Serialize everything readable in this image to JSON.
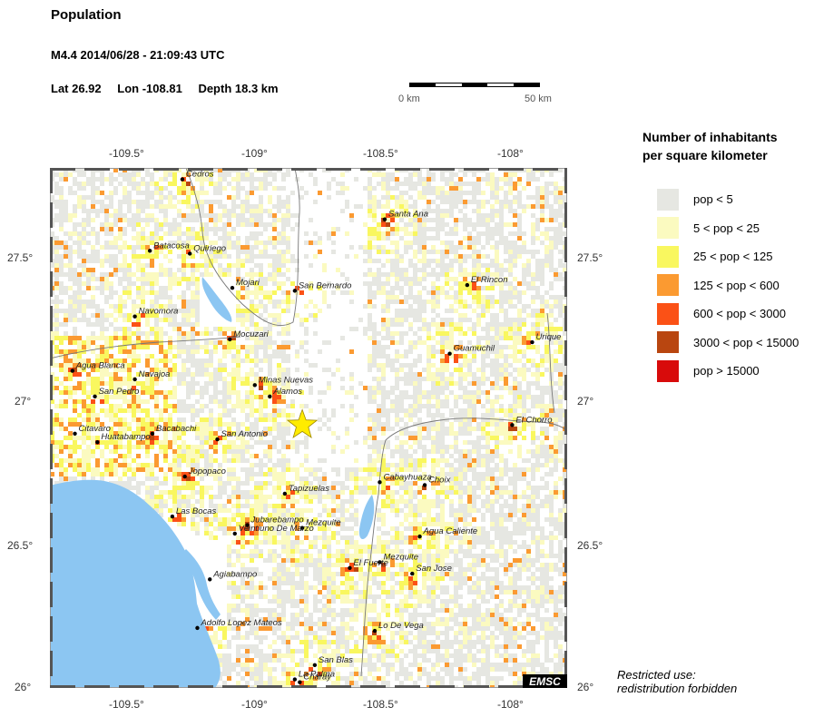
{
  "header": {
    "title": "Population",
    "event": "M4.4  2014/06/28 - 21:09:43 UTC",
    "lat": "Lat 26.92",
    "lon": "Lon -108.81",
    "depth": "Depth  18.3 km"
  },
  "scale": {
    "left_label": "0 km",
    "right_label": "50 km"
  },
  "axes": {
    "lon_ticks": [
      "-109.5°",
      "-109°",
      "-108.5°",
      "-108°"
    ],
    "lat_ticks": [
      "27.5°",
      "27°",
      "26.5°",
      "26°"
    ]
  },
  "legend": {
    "title_line1": "Number of inhabitants",
    "title_line2": "per square kilometer",
    "items": [
      {
        "label": "pop < 5",
        "color": "#e6e7e2"
      },
      {
        "label": "5 < pop < 25",
        "color": "#fbfac0"
      },
      {
        "label": "25 < pop < 125",
        "color": "#f9f75f"
      },
      {
        "label": "125 < pop < 600",
        "color": "#fb9a31"
      },
      {
        "label": "600 < pop < 3000",
        "color": "#fb5116"
      },
      {
        "label": "3000 < pop < 15000",
        "color": "#b94610"
      },
      {
        "label": "pop > 15000",
        "color": "#d80b0b"
      }
    ]
  },
  "map": {
    "epicenter": {
      "lon": -108.81,
      "lat": 26.92
    },
    "colors": {
      "water": "#8cc6f2",
      "star": "#ffec00",
      "border": "#666666"
    },
    "badge": "EMSC",
    "cities": [
      {
        "name": "Cedros",
        "lon": -109.29,
        "lat": 27.78
      },
      {
        "name": "Santa Ana",
        "lon": -108.48,
        "lat": 27.64
      },
      {
        "name": "Batacosa",
        "lon": -109.42,
        "lat": 27.53
      },
      {
        "name": "Quiriego",
        "lon": -109.26,
        "lat": 27.52
      },
      {
        "name": "Mojari",
        "lon": -109.09,
        "lat": 27.4
      },
      {
        "name": "San Bernardo",
        "lon": -108.84,
        "lat": 27.39
      },
      {
        "name": "El Rincon",
        "lon": -108.15,
        "lat": 27.41
      },
      {
        "name": "Navomora",
        "lon": -109.48,
        "lat": 27.3
      },
      {
        "name": "Mocuzari",
        "lon": -109.1,
        "lat": 27.22
      },
      {
        "name": "Guamuchil",
        "lon": -108.22,
        "lat": 27.17
      },
      {
        "name": "Urique",
        "lon": -107.89,
        "lat": 27.21
      },
      {
        "name": "Agua Blanca",
        "lon": -109.73,
        "lat": 27.11
      },
      {
        "name": "Navajoa",
        "lon": -109.48,
        "lat": 27.08
      },
      {
        "name": "Minas Nuevas",
        "lon": -109.0,
        "lat": 27.06
      },
      {
        "name": "Alamos",
        "lon": -108.94,
        "lat": 27.02
      },
      {
        "name": "San Pedro",
        "lon": -109.64,
        "lat": 27.02
      },
      {
        "name": "El Chorro",
        "lon": -107.97,
        "lat": 26.92
      },
      {
        "name": "Citavaro",
        "lon": -109.72,
        "lat": 26.89
      },
      {
        "name": "Bacabachi",
        "lon": -109.41,
        "lat": 26.89
      },
      {
        "name": "Huatabampo",
        "lon": -109.63,
        "lat": 26.86
      },
      {
        "name": "San Antonio",
        "lon": -109.15,
        "lat": 26.87
      },
      {
        "name": "Jopopaco",
        "lon": -109.28,
        "lat": 26.74
      },
      {
        "name": "Cabayhuaza",
        "lon": -108.5,
        "lat": 26.72
      },
      {
        "name": "Choix",
        "lon": -108.32,
        "lat": 26.71
      },
      {
        "name": "Tapizuelas",
        "lon": -108.88,
        "lat": 26.68
      },
      {
        "name": "Las Bocas",
        "lon": -109.33,
        "lat": 26.6
      },
      {
        "name": "Jubarebampo",
        "lon": -109.03,
        "lat": 26.57
      },
      {
        "name": "Mezquite",
        "lon": -108.81,
        "lat": 26.56
      },
      {
        "name": "Veintiuno De Marzo",
        "lon": -109.08,
        "lat": 26.54
      },
      {
        "name": "Agua Caliente",
        "lon": -108.34,
        "lat": 26.53
      },
      {
        "name": "Mezquite",
        "lon": -108.5,
        "lat": 26.44
      },
      {
        "name": "El Fuerte",
        "lon": -108.62,
        "lat": 26.42
      },
      {
        "name": "San Jose",
        "lon": -108.37,
        "lat": 26.4
      },
      {
        "name": "Agiabampo",
        "lon": -109.18,
        "lat": 26.38
      },
      {
        "name": "Adolfo Lopez Mateos",
        "lon": -109.23,
        "lat": 26.21
      },
      {
        "name": "Lo De Vega",
        "lon": -108.52,
        "lat": 26.2
      },
      {
        "name": "San Blas",
        "lon": -108.76,
        "lat": 26.08
      },
      {
        "name": "La Palma",
        "lon": -108.84,
        "lat": 26.03
      },
      {
        "name": "Charay",
        "lon": -108.82,
        "lat": 26.02
      }
    ]
  },
  "footer": {
    "line1": "Restricted use:",
    "line2": "redistribution forbidden"
  }
}
